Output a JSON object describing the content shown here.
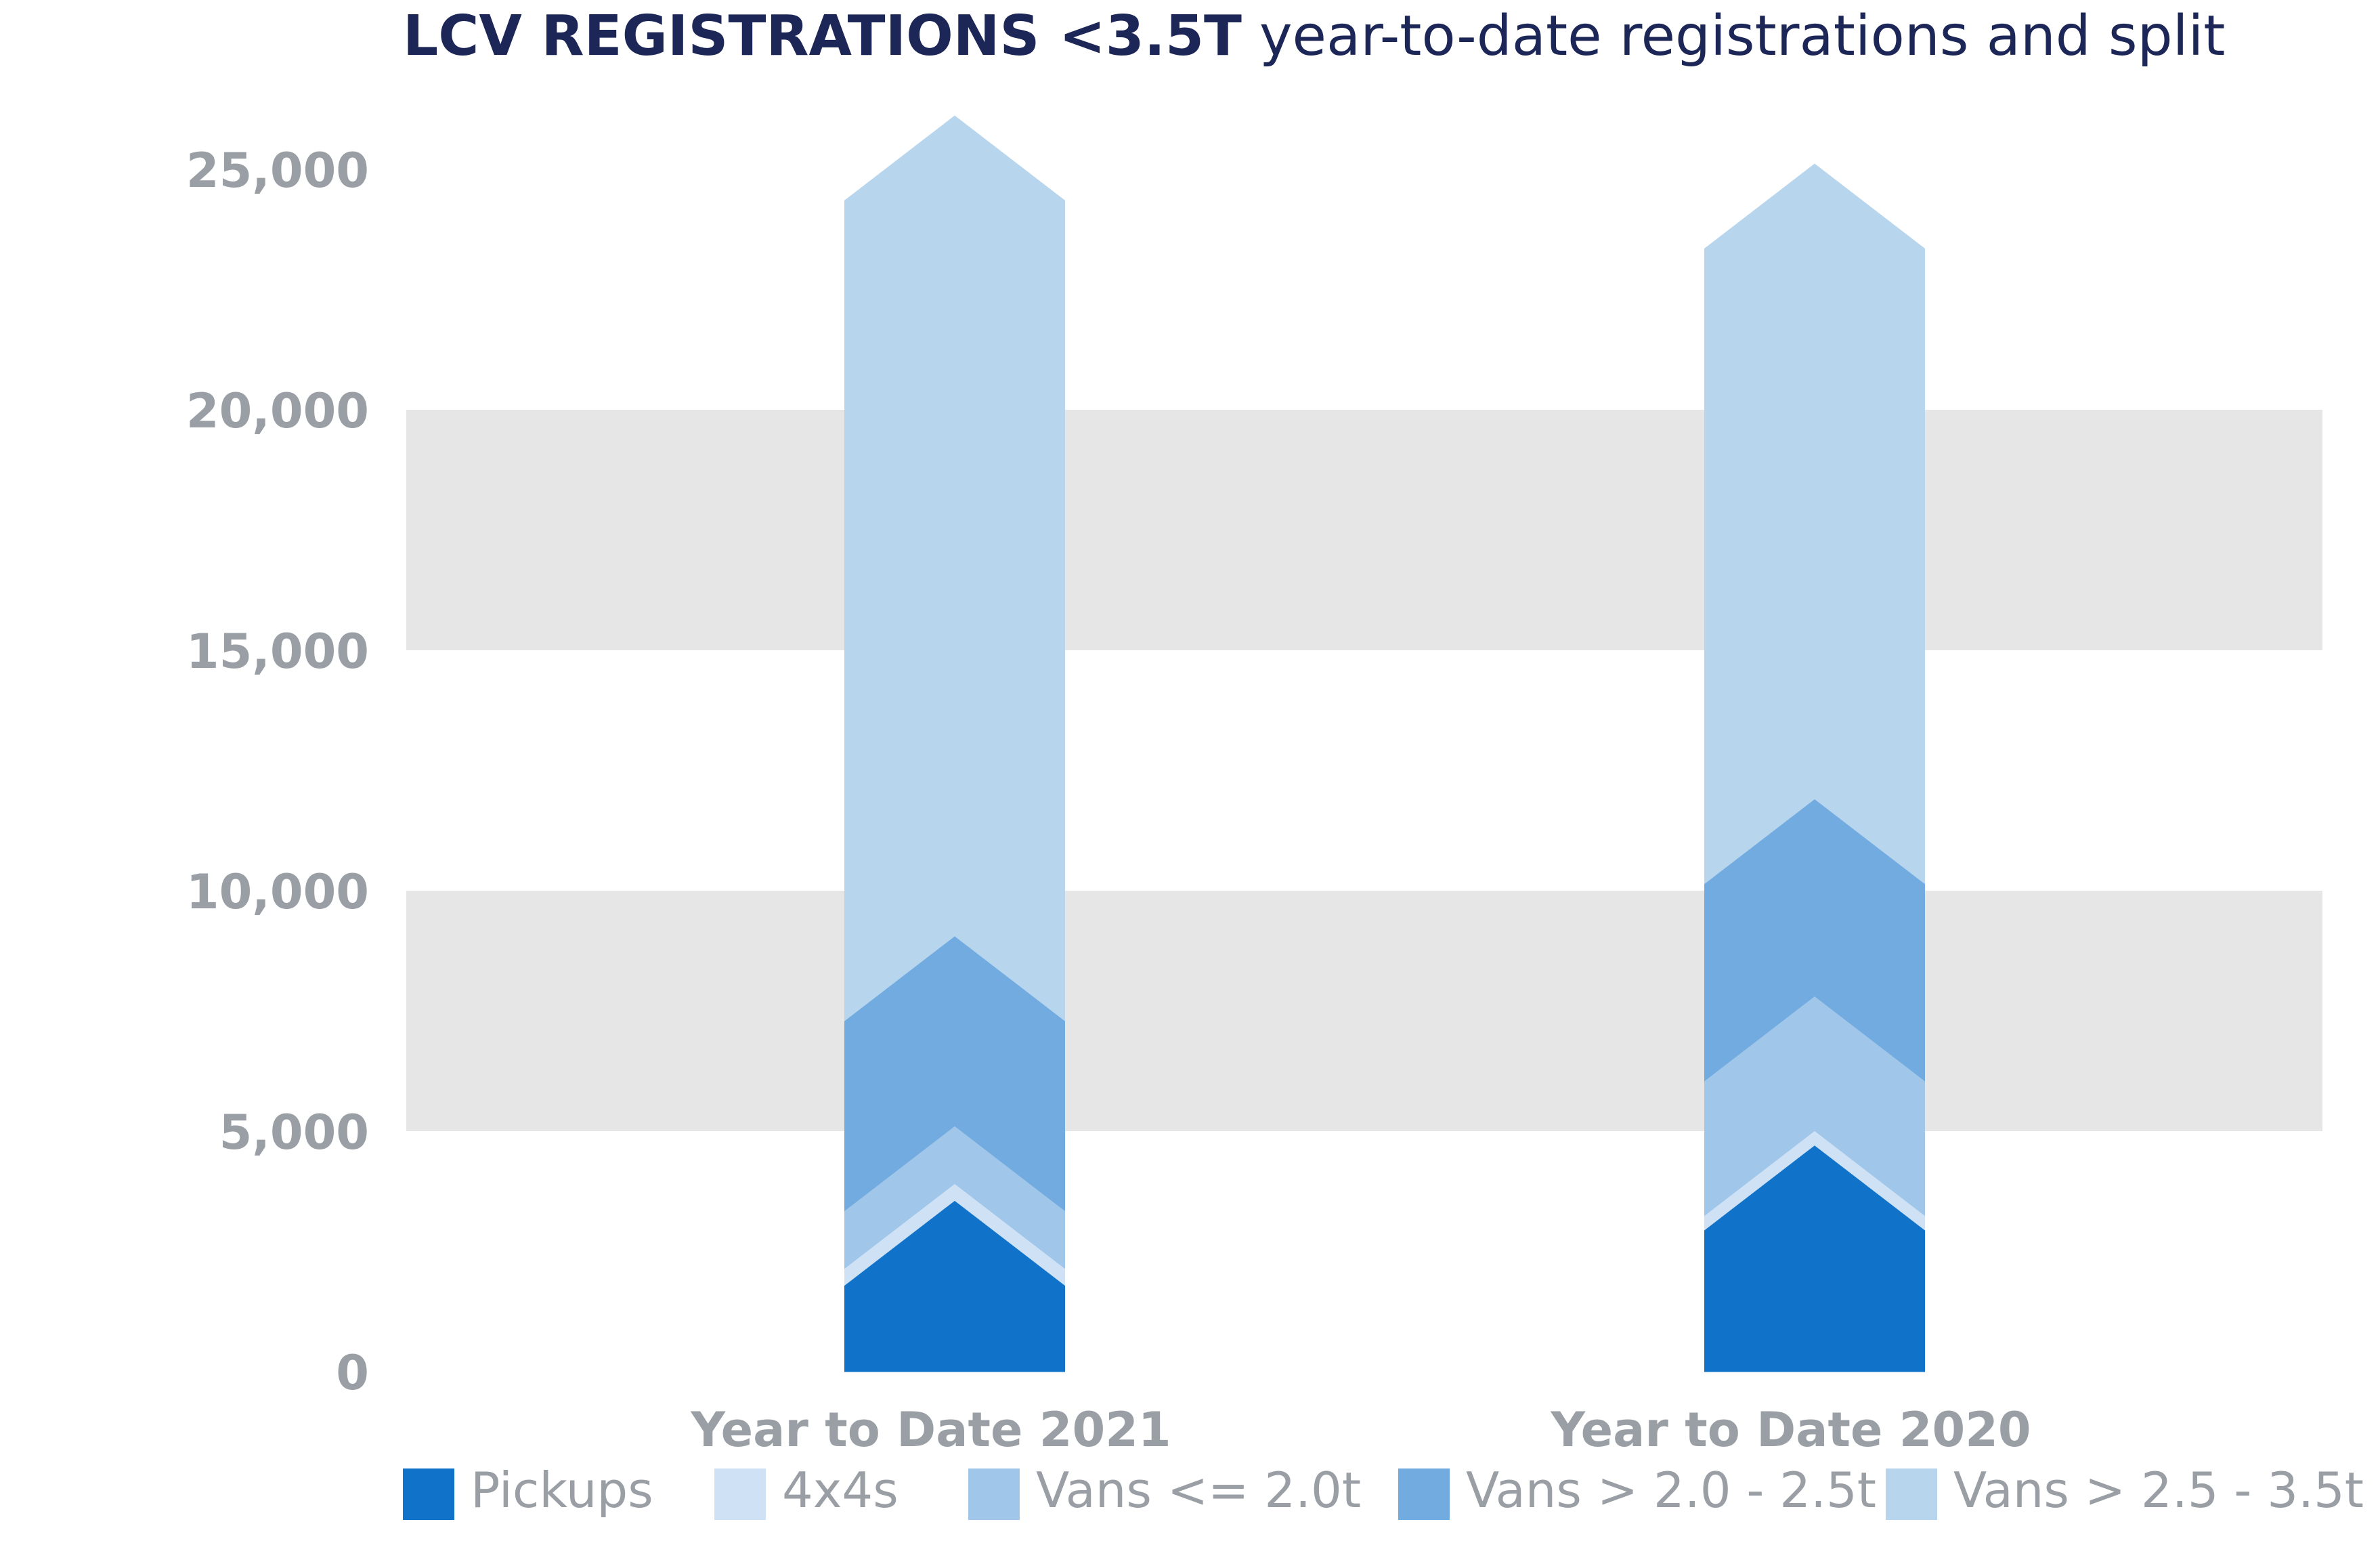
{
  "title": {
    "bold": "LCV REGISTRATIONS <3.5T",
    "light": "year-to-date registrations and split"
  },
  "chart_data": {
    "type": "bar",
    "stacked": true,
    "title": "LCV REGISTRATIONS <3.5T year-to-date registrations and split",
    "xlabel": "",
    "ylabel": "",
    "ylim": [
      0,
      25000
    ],
    "yticks": [
      0,
      5000,
      10000,
      15000,
      20000,
      25000
    ],
    "ytick_labels": [
      "0",
      "5,000",
      "10,000",
      "15,000",
      "20,000",
      "25,000"
    ],
    "grid_bands": [
      [
        5000,
        10000
      ],
      [
        15000,
        20000
      ]
    ],
    "categories": [
      "Year to Date 2021",
      "Year to Date 2020"
    ],
    "series": [
      {
        "name": "Pickups",
        "color": "#1172c9",
        "values": [
          1800,
          2950
        ]
      },
      {
        "name": "4x4s",
        "color": "#cfe2f5",
        "values": [
          350,
          300
        ]
      },
      {
        "name": "Vans <= 2.0t",
        "color": "#a0c6ea",
        "values": [
          1200,
          2800
        ]
      },
      {
        "name": "Vans > 2.0 - 2.5t",
        "color": "#72abe0",
        "values": [
          3950,
          4100
        ]
      },
      {
        "name": "Vans > 2.5 - 3.5t",
        "color": "#b8d5ee",
        "values": [
          17050,
          13200
        ]
      }
    ],
    "legend_position": "bottom"
  }
}
